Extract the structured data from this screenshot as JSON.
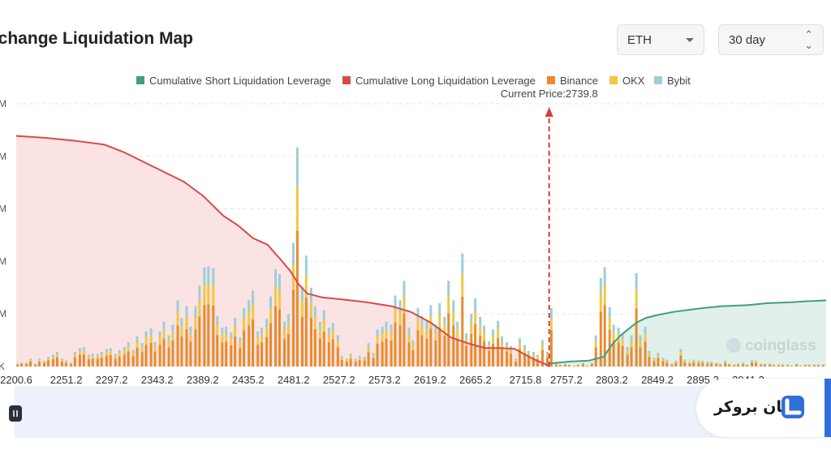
{
  "header": {
    "title": "xchange Liquidation Map"
  },
  "controls": {
    "asset_value": "ETH",
    "range_value": "30 day"
  },
  "watermark": "coinglass",
  "brand": {
    "text": "لیان بروکر"
  },
  "colors": {
    "short_line": "#3f9f7f",
    "short_fill": "#e1f0ea",
    "long_line": "#d84a4a",
    "long_fill": "#fbe3e3",
    "binance": "#e98a2c",
    "okx": "#f2c744",
    "bybit": "#9bcfd6",
    "current_price": "#d83b3b",
    "slider": "#edf1fb"
  },
  "chart_data": {
    "type": "bar",
    "title": "",
    "legend": [
      "Cumulative Short Liquidation Leverage",
      "Cumulative Long Liquidation Leverage",
      "Binance",
      "OKX",
      "Bybit"
    ],
    "legend_position": "top-center",
    "current_price_label": "Current Price:2739.8",
    "current_price": 2739.8,
    "x_range": [
      2200.6,
      3020
    ],
    "x_ticks": [
      "2200.6",
      "2251.2",
      "2297.2",
      "2343.2",
      "2389.2",
      "2435.2",
      "2481.2",
      "2527.2",
      "2573.2",
      "2619.2",
      "2665.2",
      "2715.8",
      "2757.2",
      "2803.2",
      "2849.2",
      "2895.2",
      "2941.2"
    ],
    "x_tick_values": [
      2200.6,
      2251.2,
      2297.2,
      2343.2,
      2389.2,
      2435.2,
      2481.2,
      2527.2,
      2573.2,
      2619.2,
      2665.2,
      2715.8,
      2757.2,
      2803.2,
      2849.2,
      2895.2,
      2941.2
    ],
    "y_tick_suffixes": [
      "M",
      "M",
      "M",
      "M",
      "M",
      "K"
    ],
    "y_grid_count": 6,
    "grid": true,
    "bar_x": [
      2202,
      2206,
      2211,
      2215,
      2220,
      2224,
      2229,
      2233,
      2238,
      2242,
      2247,
      2251,
      2256,
      2260,
      2265,
      2269,
      2274,
      2278,
      2283,
      2287,
      2292,
      2296,
      2301,
      2305,
      2310,
      2314,
      2319,
      2323,
      2328,
      2332,
      2337,
      2341,
      2346,
      2350,
      2355,
      2359,
      2364,
      2368,
      2373,
      2377,
      2382,
      2386,
      2391,
      2395,
      2400,
      2404,
      2409,
      2413,
      2418,
      2422,
      2427,
      2431,
      2436,
      2440,
      2445,
      2449,
      2454,
      2458,
      2463,
      2467,
      2472,
      2476,
      2481,
      2485,
      2490,
      2494,
      2499,
      2503,
      2508,
      2512,
      2517,
      2521,
      2526,
      2530,
      2535,
      2539,
      2544,
      2548,
      2553,
      2557,
      2562,
      2566,
      2571,
      2575,
      2580,
      2584,
      2589,
      2593,
      2598,
      2602,
      2607,
      2611,
      2616,
      2620,
      2625,
      2629,
      2634,
      2638,
      2643,
      2647,
      2652,
      2656,
      2661,
      2665,
      2670,
      2674,
      2679,
      2683,
      2688,
      2692,
      2697,
      2701,
      2706,
      2710,
      2715,
      2719,
      2724,
      2728,
      2733,
      2738,
      2742,
      2747,
      2751,
      2756,
      2760,
      2765,
      2769,
      2774,
      2778,
      2783,
      2787,
      2792,
      2796,
      2801,
      2805,
      2810,
      2814,
      2819,
      2823,
      2828,
      2832,
      2837,
      2841,
      2846,
      2850,
      2855,
      2859,
      2864,
      2868,
      2873,
      2877,
      2882,
      2886,
      2891,
      2895,
      2900,
      2904,
      2909,
      2913,
      2918,
      2922,
      2927,
      2931,
      2936,
      2940,
      2945,
      2949,
      2954,
      2958,
      2963,
      2967,
      2972,
      2976,
      2981,
      2985,
      2990,
      2994,
      2999,
      3003,
      3008,
      3012,
      3017
    ],
    "bar_totals": [
      0.3,
      0.4,
      0.4,
      0.8,
      0.3,
      0.8,
      0.6,
      1.0,
      1.2,
      1.5,
      0.8,
      0.6,
      0.4,
      1.5,
      1.9,
      2.0,
      1.2,
      1.3,
      1.3,
      1.5,
      1.8,
      1.9,
      1.3,
      1.7,
      2.0,
      2.5,
      1.7,
      3.1,
      2.4,
      3.6,
      3.9,
      2.5,
      3.6,
      4.6,
      3.2,
      4.3,
      6.8,
      5.0,
      6.2,
      4.1,
      6.2,
      8.3,
      10.2,
      10.3,
      10.1,
      5.2,
      4.0,
      4.1,
      3.5,
      5.0,
      3.0,
      6.0,
      6.8,
      7.8,
      3.6,
      4.0,
      4.9,
      7.2,
      10.0,
      9.5,
      4.6,
      5.4,
      12.7,
      22.5,
      8.2,
      11.4,
      8.1,
      6.2,
      4.6,
      5.8,
      4.0,
      4.5,
      3.2,
      1.1,
      0.8,
      1.3,
      0.8,
      1.1,
      1.0,
      2.4,
      1.4,
      3.8,
      4.1,
      4.6,
      4.3,
      7.3,
      6.8,
      8.8,
      4.0,
      2.7,
      6.0,
      5.2,
      4.6,
      6.3,
      4.3,
      6.5,
      5.1,
      8.8,
      6.8,
      4.6,
      11.6,
      3.4,
      5.4,
      7.0,
      5.1,
      4.2,
      2.6,
      3.8,
      4.7,
      3.1,
      2.5,
      2.1,
      0.8,
      2.9,
      2.2,
      1.6,
      1.5,
      1.2,
      2.7,
      1.5,
      6.0,
      0.3,
      0.2,
      0.3,
      0.2,
      0.1,
      0.2,
      0.4,
      0.1,
      0.4,
      3.2,
      9.1,
      10.2,
      6.1,
      4.3,
      4.0,
      3.4,
      2.0,
      3.2,
      9.6,
      3.2,
      4.1,
      1.6,
      0.9,
      1.4,
      0.9,
      0.7,
      0.3,
      0.6,
      1.8,
      0.7,
      0.5,
      0.7,
      0.6,
      0.6,
      0.5,
      0.5,
      0.4,
      0.3,
      0.6,
      0.3,
      0.2,
      0.3,
      0.4,
      0.2,
      0.7,
      0.6,
      0.3,
      0.3,
      0.3,
      0.2,
      0.2,
      0.2,
      0.2,
      0.1,
      0.3,
      0.1,
      0.2,
      0.2,
      0.2,
      0.2,
      0.2
    ],
    "bar_split": {
      "binance": 0.62,
      "okx": 0.2,
      "bybit": 0.18
    },
    "bar_max": 27,
    "long_curve": {
      "x": [
        2200.6,
        2230,
        2260,
        2290,
        2310,
        2330,
        2350,
        2370,
        2390,
        2410,
        2425,
        2440,
        2455,
        2468,
        2478,
        2486,
        2495,
        2510,
        2530,
        2555,
        2580,
        2600,
        2620,
        2640,
        2660,
        2675,
        2690,
        2705,
        2716,
        2725,
        2735,
        2739.8
      ],
      "y": [
        23.7,
        23.5,
        23.2,
        22.8,
        22.0,
        21.0,
        20.0,
        19.0,
        17.5,
        15.5,
        14.5,
        13.2,
        12.5,
        11.0,
        9.8,
        8.5,
        7.5,
        7.1,
        6.9,
        6.6,
        6.2,
        5.6,
        4.5,
        3.0,
        2.3,
        1.9,
        1.9,
        1.8,
        1.2,
        0.7,
        0.3,
        0.0
      ]
    },
    "short_curve": {
      "x": [
        2739.8,
        2760,
        2780,
        2795,
        2803,
        2811,
        2817,
        2828,
        2838,
        2850,
        2865,
        2880,
        2895,
        2915,
        2940,
        2960,
        2985,
        3000,
        3020
      ],
      "y": [
        0.3,
        0.5,
        0.6,
        1.0,
        2.2,
        3.1,
        3.6,
        4.5,
        5.0,
        5.3,
        5.6,
        5.8,
        6.0,
        6.2,
        6.3,
        6.5,
        6.6,
        6.7,
        6.8
      ]
    },
    "y_max": 27
  }
}
